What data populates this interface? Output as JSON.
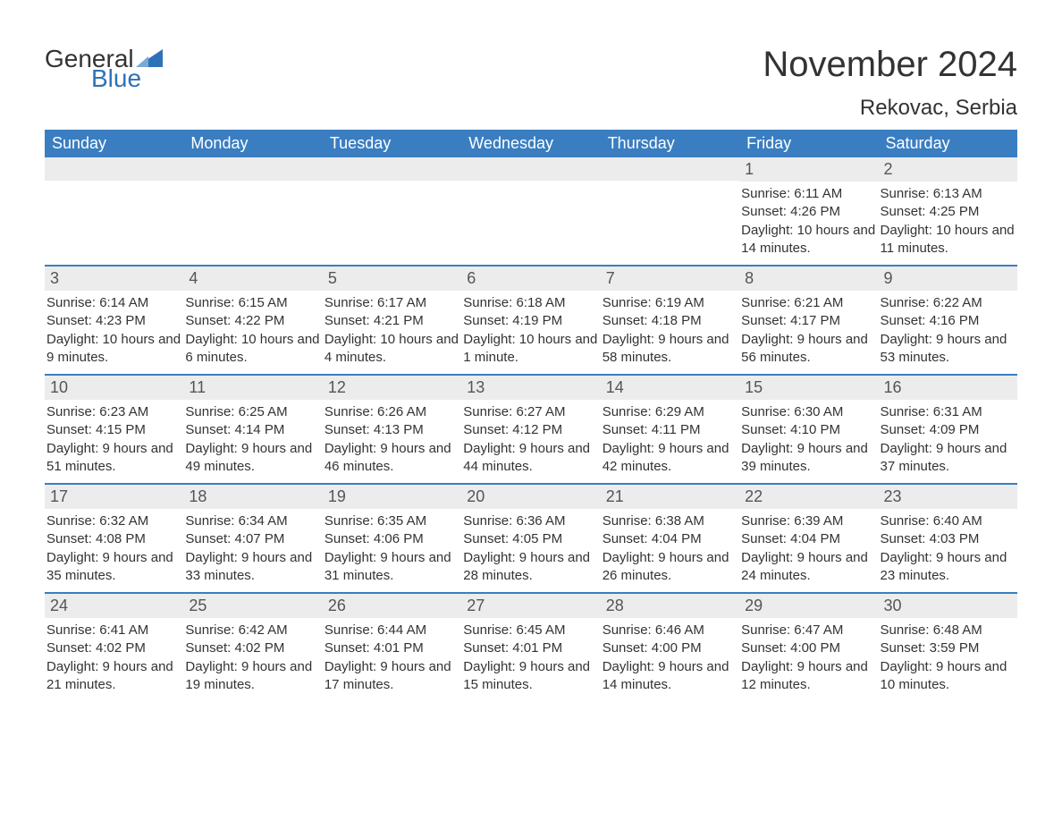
{
  "logo": {
    "text1": "General",
    "text2": "Blue",
    "sail_color": "#2f72b8"
  },
  "title": {
    "month": "November 2024",
    "location": "Rekovac, Serbia"
  },
  "colors": {
    "header_bg": "#3a7ec1",
    "header_text": "#ffffff",
    "daynum_bg": "#ececec",
    "rule": "#3a7ec1",
    "body_text": "#333333",
    "page_bg": "#ffffff",
    "logo_accent": "#2f72b8"
  },
  "typography": {
    "month_fontsize": 40,
    "location_fontsize": 24,
    "dow_fontsize": 18,
    "daynum_fontsize": 18,
    "body_fontsize": 15,
    "font_family": "Arial"
  },
  "layout": {
    "columns": 7,
    "rows": 5,
    "cell_min_height": 120
  },
  "days_of_week": [
    "Sunday",
    "Monday",
    "Tuesday",
    "Wednesday",
    "Thursday",
    "Friday",
    "Saturday"
  ],
  "weeks": [
    [
      null,
      null,
      null,
      null,
      null,
      {
        "d": "1",
        "sr": "Sunrise: 6:11 AM",
        "ss": "Sunset: 4:26 PM",
        "dl": "Daylight: 10 hours and 14 minutes."
      },
      {
        "d": "2",
        "sr": "Sunrise: 6:13 AM",
        "ss": "Sunset: 4:25 PM",
        "dl": "Daylight: 10 hours and 11 minutes."
      }
    ],
    [
      {
        "d": "3",
        "sr": "Sunrise: 6:14 AM",
        "ss": "Sunset: 4:23 PM",
        "dl": "Daylight: 10 hours and 9 minutes."
      },
      {
        "d": "4",
        "sr": "Sunrise: 6:15 AM",
        "ss": "Sunset: 4:22 PM",
        "dl": "Daylight: 10 hours and 6 minutes."
      },
      {
        "d": "5",
        "sr": "Sunrise: 6:17 AM",
        "ss": "Sunset: 4:21 PM",
        "dl": "Daylight: 10 hours and 4 minutes."
      },
      {
        "d": "6",
        "sr": "Sunrise: 6:18 AM",
        "ss": "Sunset: 4:19 PM",
        "dl": "Daylight: 10 hours and 1 minute."
      },
      {
        "d": "7",
        "sr": "Sunrise: 6:19 AM",
        "ss": "Sunset: 4:18 PM",
        "dl": "Daylight: 9 hours and 58 minutes."
      },
      {
        "d": "8",
        "sr": "Sunrise: 6:21 AM",
        "ss": "Sunset: 4:17 PM",
        "dl": "Daylight: 9 hours and 56 minutes."
      },
      {
        "d": "9",
        "sr": "Sunrise: 6:22 AM",
        "ss": "Sunset: 4:16 PM",
        "dl": "Daylight: 9 hours and 53 minutes."
      }
    ],
    [
      {
        "d": "10",
        "sr": "Sunrise: 6:23 AM",
        "ss": "Sunset: 4:15 PM",
        "dl": "Daylight: 9 hours and 51 minutes."
      },
      {
        "d": "11",
        "sr": "Sunrise: 6:25 AM",
        "ss": "Sunset: 4:14 PM",
        "dl": "Daylight: 9 hours and 49 minutes."
      },
      {
        "d": "12",
        "sr": "Sunrise: 6:26 AM",
        "ss": "Sunset: 4:13 PM",
        "dl": "Daylight: 9 hours and 46 minutes."
      },
      {
        "d": "13",
        "sr": "Sunrise: 6:27 AM",
        "ss": "Sunset: 4:12 PM",
        "dl": "Daylight: 9 hours and 44 minutes."
      },
      {
        "d": "14",
        "sr": "Sunrise: 6:29 AM",
        "ss": "Sunset: 4:11 PM",
        "dl": "Daylight: 9 hours and 42 minutes."
      },
      {
        "d": "15",
        "sr": "Sunrise: 6:30 AM",
        "ss": "Sunset: 4:10 PM",
        "dl": "Daylight: 9 hours and 39 minutes."
      },
      {
        "d": "16",
        "sr": "Sunrise: 6:31 AM",
        "ss": "Sunset: 4:09 PM",
        "dl": "Daylight: 9 hours and 37 minutes."
      }
    ],
    [
      {
        "d": "17",
        "sr": "Sunrise: 6:32 AM",
        "ss": "Sunset: 4:08 PM",
        "dl": "Daylight: 9 hours and 35 minutes."
      },
      {
        "d": "18",
        "sr": "Sunrise: 6:34 AM",
        "ss": "Sunset: 4:07 PM",
        "dl": "Daylight: 9 hours and 33 minutes."
      },
      {
        "d": "19",
        "sr": "Sunrise: 6:35 AM",
        "ss": "Sunset: 4:06 PM",
        "dl": "Daylight: 9 hours and 31 minutes."
      },
      {
        "d": "20",
        "sr": "Sunrise: 6:36 AM",
        "ss": "Sunset: 4:05 PM",
        "dl": "Daylight: 9 hours and 28 minutes."
      },
      {
        "d": "21",
        "sr": "Sunrise: 6:38 AM",
        "ss": "Sunset: 4:04 PM",
        "dl": "Daylight: 9 hours and 26 minutes."
      },
      {
        "d": "22",
        "sr": "Sunrise: 6:39 AM",
        "ss": "Sunset: 4:04 PM",
        "dl": "Daylight: 9 hours and 24 minutes."
      },
      {
        "d": "23",
        "sr": "Sunrise: 6:40 AM",
        "ss": "Sunset: 4:03 PM",
        "dl": "Daylight: 9 hours and 23 minutes."
      }
    ],
    [
      {
        "d": "24",
        "sr": "Sunrise: 6:41 AM",
        "ss": "Sunset: 4:02 PM",
        "dl": "Daylight: 9 hours and 21 minutes."
      },
      {
        "d": "25",
        "sr": "Sunrise: 6:42 AM",
        "ss": "Sunset: 4:02 PM",
        "dl": "Daylight: 9 hours and 19 minutes."
      },
      {
        "d": "26",
        "sr": "Sunrise: 6:44 AM",
        "ss": "Sunset: 4:01 PM",
        "dl": "Daylight: 9 hours and 17 minutes."
      },
      {
        "d": "27",
        "sr": "Sunrise: 6:45 AM",
        "ss": "Sunset: 4:01 PM",
        "dl": "Daylight: 9 hours and 15 minutes."
      },
      {
        "d": "28",
        "sr": "Sunrise: 6:46 AM",
        "ss": "Sunset: 4:00 PM",
        "dl": "Daylight: 9 hours and 14 minutes."
      },
      {
        "d": "29",
        "sr": "Sunrise: 6:47 AM",
        "ss": "Sunset: 4:00 PM",
        "dl": "Daylight: 9 hours and 12 minutes."
      },
      {
        "d": "30",
        "sr": "Sunrise: 6:48 AM",
        "ss": "Sunset: 3:59 PM",
        "dl": "Daylight: 9 hours and 10 minutes."
      }
    ]
  ]
}
